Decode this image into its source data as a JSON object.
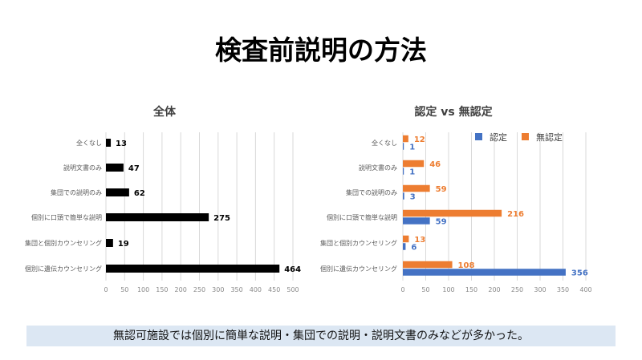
{
  "title": "検査前説明の方法",
  "footer": "無認可施設では個別に簡単な説明・集団での説明・説明文書のみなどが多かった。",
  "chart_data": [
    {
      "type": "bar",
      "orientation": "horizontal",
      "title": "全体",
      "categories": [
        "全くなし",
        "説明文書のみ",
        "集団での説明のみ",
        "個別に口頭で簡単な説明",
        "集団と個別カウンセリング",
        "個別に遺伝カウンセリング"
      ],
      "series": [
        {
          "name": "全体",
          "values": [
            13,
            47,
            62,
            275,
            19,
            464
          ],
          "color": "#000000"
        }
      ],
      "xlim": [
        0,
        500
      ],
      "xticks": [
        0,
        50,
        100,
        150,
        200,
        250,
        300,
        350,
        400,
        450,
        500
      ],
      "grid": true,
      "legend": null
    },
    {
      "type": "bar",
      "orientation": "horizontal",
      "title": "認定 vs 無認定",
      "categories": [
        "全くなし",
        "説明文書のみ",
        "集団での説明のみ",
        "個別に口頭で簡単な説明",
        "集団と個別カウンセリング",
        "個別に遺伝カウンセリング"
      ],
      "series": [
        {
          "name": "無認定",
          "values": [
            12,
            46,
            59,
            216,
            13,
            108
          ],
          "color": "#ed7d31"
        },
        {
          "name": "認定",
          "values": [
            1,
            1,
            3,
            59,
            6,
            356
          ],
          "color": "#4472c4"
        }
      ],
      "legend_order": [
        "認定",
        "無認定"
      ],
      "xlim": [
        0,
        400
      ],
      "xticks": [
        0,
        50,
        100,
        150,
        200,
        250,
        300,
        350,
        400
      ],
      "grid": true,
      "legend": "top-right"
    }
  ]
}
